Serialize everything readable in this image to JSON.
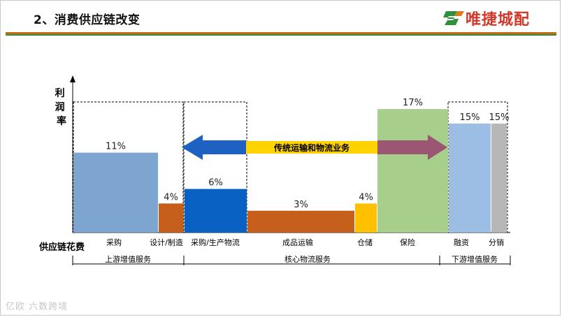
{
  "header": {
    "title": "2、消费供应链改变",
    "brand": "唯捷城配"
  },
  "watermark": "亿欧 六数跨境",
  "chart_data": {
    "type": "bar",
    "y_axis_label": "利润率",
    "x_axis_label": "供应链花费",
    "grid": false,
    "categories": [
      {
        "label": "采购",
        "value": 11,
        "value_label": "11%",
        "color": "#7ea5d0"
      },
      {
        "label": "设计/制造",
        "value": 4,
        "value_label": "4%",
        "color": "#c65f1c"
      },
      {
        "label": "采购/生产物流",
        "value": 6,
        "value_label": "6%",
        "color": "#0a61c4"
      },
      {
        "label": "成品运输",
        "value": 3,
        "value_label": "3%",
        "color": "#c65f1c"
      },
      {
        "label": "仓储",
        "value": 4,
        "value_label": "4%",
        "color": "#ffc000"
      },
      {
        "label": "保险",
        "value": 17,
        "value_label": "17%",
        "color": "#a7cf8b"
      },
      {
        "label": "融资",
        "value": 15,
        "value_label": "15%",
        "color": "#9cbde4"
      },
      {
        "label": "分销",
        "value": 15,
        "value_label": "15%",
        "color": "#b7b7b7"
      }
    ],
    "groups": [
      {
        "label": "上游增值服务",
        "from": 0,
        "to": 1
      },
      {
        "label": "核心物流服务",
        "from": 2,
        "to": 5
      },
      {
        "label": "下游增值服务",
        "from": 6,
        "to": 7
      }
    ],
    "annotations": [
      {
        "label": "传统运输和物流业务",
        "band_color": "#ffd200",
        "left_arrow_color": "#1d62c2",
        "right_arrow_color": "#9b5673"
      }
    ]
  }
}
